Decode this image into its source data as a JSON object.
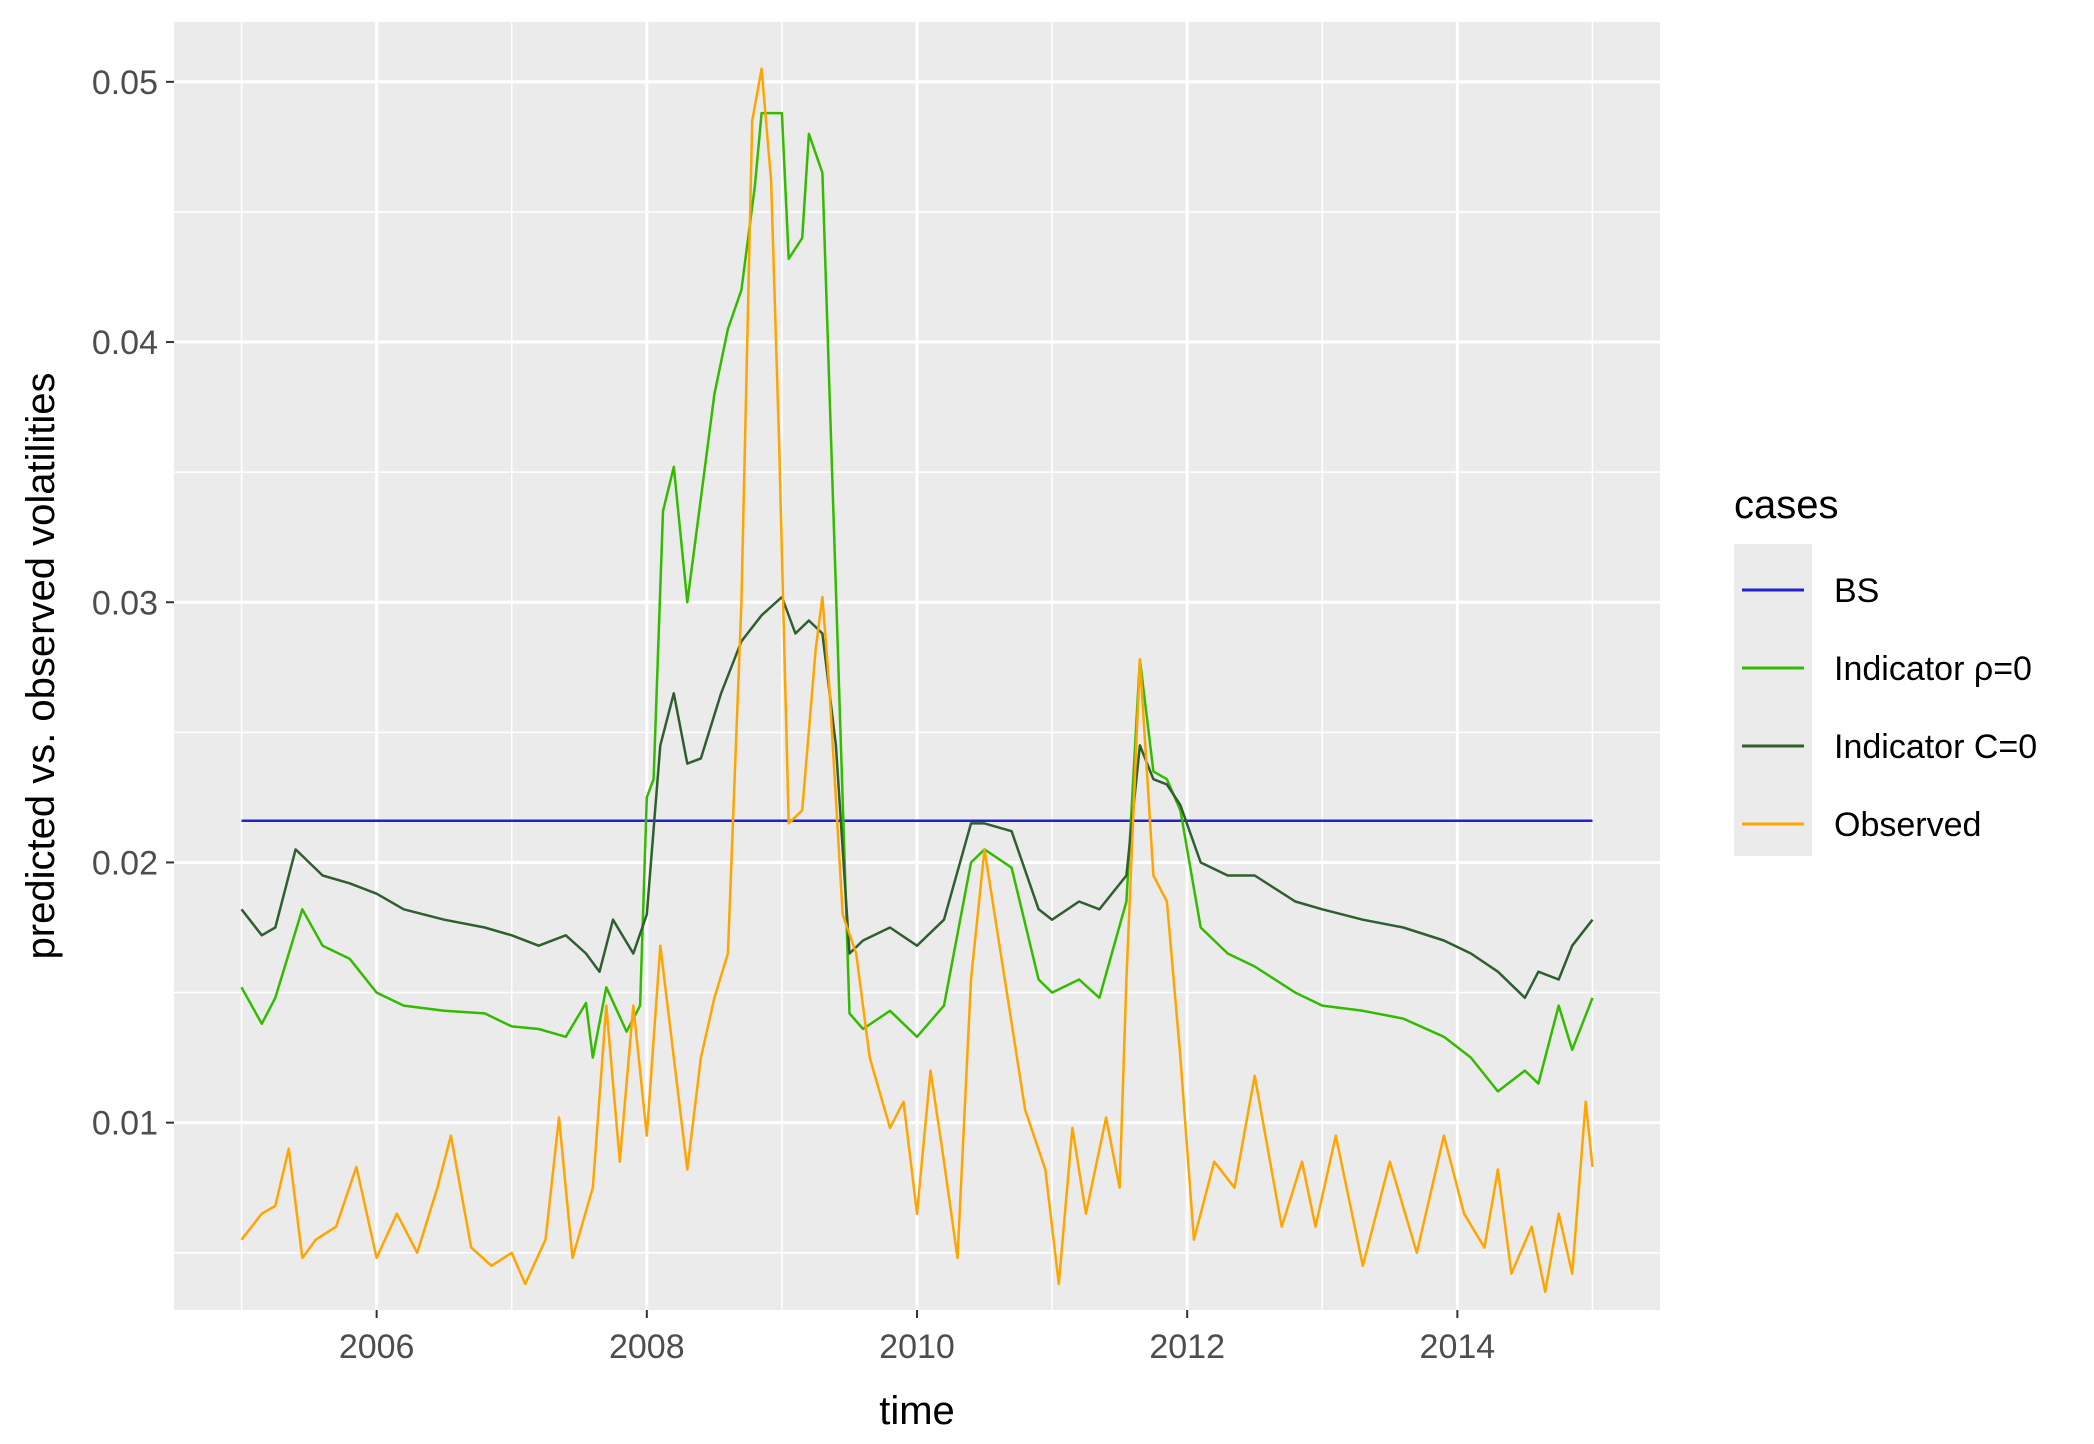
{
  "chart_data": {
    "type": "line",
    "xlabel": "time",
    "ylabel": "predicted vs. observed volatilities",
    "xlim": [
      2004.5,
      2015.5
    ],
    "ylim": [
      0.0028,
      0.0523
    ],
    "x_ticks": [
      2006,
      2008,
      2010,
      2012,
      2014
    ],
    "y_ticks": [
      0.01,
      0.02,
      0.03,
      0.04,
      0.05
    ],
    "x_tick_labels": [
      "2006",
      "2008",
      "2010",
      "2012",
      "2014"
    ],
    "y_tick_labels": [
      "0.01",
      "0.02",
      "0.03",
      "0.04",
      "0.05"
    ],
    "grid": true,
    "legend": {
      "title": "cases",
      "position": "right",
      "entries": [
        "BS",
        "Indicator ρ=0",
        "Indicator C=0",
        "Observed"
      ]
    },
    "series": [
      {
        "name": "BS",
        "color": "#2222cc",
        "x": [
          2005.0,
          2015.0
        ],
        "values": [
          0.0216,
          0.0216
        ]
      },
      {
        "name": "Indicator ρ=0",
        "color": "#33bb00",
        "x": [
          2005.0,
          2005.15,
          2005.25,
          2005.45,
          2005.6,
          2005.8,
          2006.0,
          2006.2,
          2006.5,
          2006.8,
          2007.0,
          2007.2,
          2007.4,
          2007.55,
          2007.6,
          2007.7,
          2007.85,
          2007.95,
          2008.0,
          2008.05,
          2008.12,
          2008.2,
          2008.3,
          2008.4,
          2008.5,
          2008.6,
          2008.7,
          2008.8,
          2008.85,
          2008.92,
          2009.0,
          2009.05,
          2009.15,
          2009.2,
          2009.3,
          2009.4,
          2009.5,
          2009.6,
          2009.8,
          2010.0,
          2010.2,
          2010.4,
          2010.5,
          2010.7,
          2010.9,
          2011.0,
          2011.2,
          2011.35,
          2011.55,
          2011.65,
          2011.75,
          2011.85,
          2011.95,
          2012.1,
          2012.3,
          2012.5,
          2012.8,
          2013.0,
          2013.3,
          2013.6,
          2013.9,
          2014.1,
          2014.3,
          2014.5,
          2014.6,
          2014.75,
          2014.85,
          2015.0
        ],
        "values": [
          0.0152,
          0.0138,
          0.0148,
          0.0182,
          0.0168,
          0.0163,
          0.015,
          0.0145,
          0.0143,
          0.0142,
          0.0137,
          0.0136,
          0.0133,
          0.0146,
          0.0125,
          0.0152,
          0.0135,
          0.0145,
          0.0225,
          0.0232,
          0.0335,
          0.0352,
          0.03,
          0.034,
          0.038,
          0.0405,
          0.042,
          0.046,
          0.0488,
          0.0488,
          0.0488,
          0.0432,
          0.044,
          0.048,
          0.0465,
          0.0305,
          0.0142,
          0.0136,
          0.0143,
          0.0133,
          0.0145,
          0.02,
          0.0205,
          0.0198,
          0.0155,
          0.015,
          0.0155,
          0.0148,
          0.0185,
          0.0278,
          0.0235,
          0.0232,
          0.022,
          0.0175,
          0.0165,
          0.016,
          0.015,
          0.0145,
          0.0143,
          0.014,
          0.0133,
          0.0125,
          0.0112,
          0.012,
          0.0115,
          0.0145,
          0.0128,
          0.0148
        ]
      },
      {
        "name": "Indicator C=0",
        "color": "#2f5f2f",
        "x": [
          2005.0,
          2005.15,
          2005.25,
          2005.4,
          2005.6,
          2005.8,
          2006.0,
          2006.2,
          2006.5,
          2006.8,
          2007.0,
          2007.2,
          2007.4,
          2007.55,
          2007.65,
          2007.75,
          2007.9,
          2008.0,
          2008.1,
          2008.2,
          2008.3,
          2008.4,
          2008.55,
          2008.7,
          2008.85,
          2009.0,
          2009.1,
          2009.2,
          2009.3,
          2009.4,
          2009.5,
          2009.6,
          2009.8,
          2010.0,
          2010.2,
          2010.4,
          2010.5,
          2010.7,
          2010.9,
          2011.0,
          2011.2,
          2011.35,
          2011.55,
          2011.65,
          2011.75,
          2011.85,
          2011.95,
          2012.1,
          2012.3,
          2012.5,
          2012.8,
          2013.0,
          2013.3,
          2013.6,
          2013.9,
          2014.1,
          2014.3,
          2014.5,
          2014.6,
          2014.75,
          2014.85,
          2015.0
        ],
        "values": [
          0.0182,
          0.0172,
          0.0175,
          0.0205,
          0.0195,
          0.0192,
          0.0188,
          0.0182,
          0.0178,
          0.0175,
          0.0172,
          0.0168,
          0.0172,
          0.0165,
          0.0158,
          0.0178,
          0.0165,
          0.018,
          0.0245,
          0.0265,
          0.0238,
          0.024,
          0.0265,
          0.0285,
          0.0295,
          0.0302,
          0.0288,
          0.0293,
          0.0288,
          0.0245,
          0.0165,
          0.017,
          0.0175,
          0.0168,
          0.0178,
          0.0215,
          0.0215,
          0.0212,
          0.0182,
          0.0178,
          0.0185,
          0.0182,
          0.0195,
          0.0245,
          0.0232,
          0.023,
          0.0222,
          0.02,
          0.0195,
          0.0195,
          0.0185,
          0.0182,
          0.0178,
          0.0175,
          0.017,
          0.0165,
          0.0158,
          0.0148,
          0.0158,
          0.0155,
          0.0168,
          0.0178
        ]
      },
      {
        "name": "Observed",
        "color": "#ffa500",
        "x": [
          2005.0,
          2005.15,
          2005.25,
          2005.35,
          2005.45,
          2005.55,
          2005.7,
          2005.85,
          2006.0,
          2006.15,
          2006.3,
          2006.45,
          2006.55,
          2006.7,
          2006.85,
          2007.0,
          2007.1,
          2007.25,
          2007.35,
          2007.45,
          2007.6,
          2007.7,
          2007.8,
          2007.9,
          2008.0,
          2008.1,
          2008.2,
          2008.3,
          2008.4,
          2008.5,
          2008.6,
          2008.7,
          2008.78,
          2008.85,
          2008.92,
          2008.98,
          2009.05,
          2009.15,
          2009.25,
          2009.3,
          2009.35,
          2009.45,
          2009.55,
          2009.65,
          2009.8,
          2009.9,
          2010.0,
          2010.1,
          2010.2,
          2010.3,
          2010.4,
          2010.5,
          2010.65,
          2010.8,
          2010.95,
          2011.05,
          2011.15,
          2011.25,
          2011.4,
          2011.5,
          2011.55,
          2011.65,
          2011.75,
          2011.85,
          2011.95,
          2012.05,
          2012.2,
          2012.35,
          2012.5,
          2012.7,
          2012.85,
          2012.95,
          2013.1,
          2013.3,
          2013.5,
          2013.7,
          2013.9,
          2014.05,
          2014.2,
          2014.3,
          2014.4,
          2014.55,
          2014.65,
          2014.75,
          2014.85,
          2014.95,
          2015.0
        ],
        "values": [
          0.0055,
          0.0065,
          0.0068,
          0.009,
          0.0048,
          0.0055,
          0.006,
          0.0083,
          0.0048,
          0.0065,
          0.005,
          0.0075,
          0.0095,
          0.0052,
          0.0045,
          0.005,
          0.0038,
          0.0055,
          0.0102,
          0.0048,
          0.0075,
          0.0145,
          0.0085,
          0.0145,
          0.0095,
          0.0168,
          0.0125,
          0.0082,
          0.0125,
          0.0148,
          0.0165,
          0.03,
          0.0485,
          0.0505,
          0.0462,
          0.036,
          0.0215,
          0.022,
          0.0282,
          0.0302,
          0.0268,
          0.018,
          0.0165,
          0.0125,
          0.0098,
          0.0108,
          0.0065,
          0.012,
          0.0085,
          0.0048,
          0.0155,
          0.0205,
          0.0155,
          0.0105,
          0.0082,
          0.0038,
          0.0098,
          0.0065,
          0.0102,
          0.0075,
          0.0155,
          0.0278,
          0.0195,
          0.0185,
          0.0125,
          0.0055,
          0.0085,
          0.0075,
          0.0118,
          0.006,
          0.0085,
          0.006,
          0.0095,
          0.0045,
          0.0085,
          0.005,
          0.0095,
          0.0065,
          0.0052,
          0.0082,
          0.0042,
          0.006,
          0.0035,
          0.0065,
          0.0042,
          0.0108,
          0.0083
        ]
      }
    ]
  }
}
